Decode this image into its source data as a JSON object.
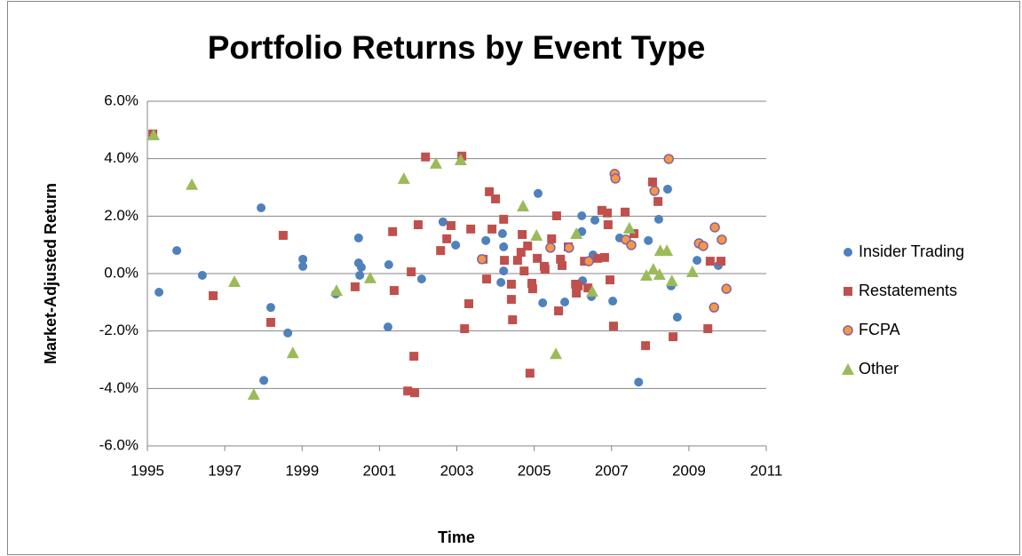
{
  "chart_data": {
    "type": "scatter",
    "title": "Portfolio Returns by Event Type",
    "xlabel": "Time",
    "ylabel": "Market-Adjusted Return",
    "xlim": [
      1995,
      2011
    ],
    "xticks": [
      1995,
      1997,
      1999,
      2001,
      2003,
      2005,
      2007,
      2009,
      2011
    ],
    "ylim": [
      -6,
      6
    ],
    "yticks": [
      {
        "value": -6,
        "label": "-6.0%"
      },
      {
        "value": -4,
        "label": "-4.0%"
      },
      {
        "value": -2,
        "label": "-2.0%"
      },
      {
        "value": 0,
        "label": "0.0%"
      },
      {
        "value": 2,
        "label": "2.0%"
      },
      {
        "value": 4,
        "label": "4.0%"
      },
      {
        "value": 6,
        "label": "6.0%"
      }
    ],
    "grid": true,
    "legend": "right",
    "series": [
      {
        "name": "Insider Trading",
        "color": "#4f81bd",
        "marker": "circle",
        "x": [
          1995.3,
          1995.76,
          1996.42,
          1997.94,
          1998.01,
          1998.19,
          1998.63,
          1999.02,
          1999.02,
          1999.87,
          2000.46,
          2000.46,
          2000.49,
          2000.53,
          2001.22,
          2001.24,
          2002.09,
          2002.64,
          2002.97,
          2003.75,
          2004.14,
          2004.18,
          2004.21,
          2004.21,
          2005.1,
          2005.22,
          2005.79,
          2006.23,
          2006.23,
          2006.25,
          2006.57,
          2006.52,
          2006.48,
          2007.21,
          2007.03,
          2007.7,
          2007.95,
          2008.22,
          2008.45,
          2008.54,
          2008.7,
          2009.21,
          2009.76
        ],
        "values": [
          -0.65,
          0.8,
          -0.06,
          2.29,
          -3.72,
          -1.18,
          -2.07,
          0.5,
          0.25,
          -0.71,
          1.24,
          0.37,
          -0.06,
          0.22,
          -1.86,
          0.31,
          -0.19,
          1.8,
          0.99,
          1.15,
          -0.31,
          1.39,
          0.09,
          0.93,
          2.79,
          -1.02,
          -0.99,
          2.01,
          1.46,
          -0.25,
          1.86,
          0.65,
          -0.8,
          1.24,
          -0.96,
          -3.78,
          1.15,
          1.89,
          2.94,
          -0.43,
          -1.52,
          0.46,
          0.28
        ]
      },
      {
        "name": "Restatements",
        "color": "#c0504d",
        "marker": "square",
        "x": [
          1995.14,
          1996.7,
          1998.19,
          1998.51,
          2000.37,
          2001.34,
          2001.38,
          2001.73,
          2001.82,
          2001.89,
          2001.91,
          2002.0,
          2002.19,
          2002.58,
          2002.74,
          2002.85,
          2003.13,
          2003.2,
          2003.31,
          2003.36,
          2003.68,
          2003.77,
          2003.84,
          2003.91,
          2004.0,
          2004.21,
          2004.23,
          2004.41,
          2004.41,
          2004.44,
          2004.57,
          2004.66,
          2004.69,
          2004.74,
          2004.83,
          2004.89,
          2004.94,
          2004.96,
          2005.08,
          2005.26,
          2005.28,
          2005.45,
          2005.58,
          2005.63,
          2005.68,
          2005.72,
          2005.88,
          2006.07,
          2006.09,
          2006.14,
          2006.3,
          2006.39,
          2006.64,
          2006.75,
          2006.82,
          2006.89,
          2006.91,
          2006.96,
          2007.05,
          2007.35,
          2007.58,
          2007.88,
          2008.06,
          2008.2,
          2008.59,
          2009.49,
          2009.55,
          2009.83
        ],
        "values": [
          4.86,
          -0.77,
          -1.7,
          1.33,
          -0.46,
          1.46,
          -0.59,
          -4.09,
          0.06,
          -2.88,
          -4.15,
          1.7,
          4.06,
          0.8,
          1.21,
          1.67,
          4.09,
          -1.92,
          -1.05,
          1.55,
          0.5,
          -0.19,
          2.85,
          1.55,
          2.6,
          1.89,
          0.46,
          -0.37,
          -0.9,
          -1.61,
          0.46,
          0.74,
          1.36,
          0.09,
          0.96,
          -3.47,
          -0.34,
          -0.53,
          0.53,
          0.25,
          0.15,
          1.21,
          2.01,
          -1.3,
          0.5,
          0.28,
          0.93,
          -0.37,
          -0.68,
          -0.43,
          0.43,
          -0.5,
          0.53,
          2.2,
          0.56,
          2.11,
          1.7,
          -0.22,
          -1.83,
          2.14,
          1.39,
          -2.51,
          3.19,
          2.51,
          -2.2,
          -1.92,
          0.43,
          0.43
        ]
      },
      {
        "name": "FCPA",
        "color": "#f79646",
        "edgecolor": "#8064a2",
        "marker": "circle",
        "x": [
          2003.65,
          2005.42,
          2005.9,
          2006.41,
          2007.08,
          2007.1,
          2007.37,
          2007.51,
          2008.11,
          2008.48,
          2009.26,
          2009.37,
          2009.65,
          2009.67,
          2009.85,
          2009.97
        ],
        "values": [
          0.5,
          0.9,
          0.9,
          0.43,
          3.47,
          3.31,
          1.18,
          0.99,
          2.88,
          3.99,
          1.05,
          0.96,
          -1.18,
          1.61,
          1.18,
          -0.53
        ]
      },
      {
        "name": "Other",
        "color": "#9bbb59",
        "marker": "triangle",
        "x": [
          1995.16,
          1996.15,
          1997.25,
          1997.75,
          1998.76,
          1999.89,
          2000.76,
          2001.63,
          2002.46,
          2003.1,
          2004.71,
          2005.06,
          2005.56,
          2006.09,
          2006.5,
          2007.46,
          2007.9,
          2008.08,
          2008.24,
          2008.26,
          2008.43,
          2008.56,
          2009.09
        ],
        "values": [
          4.83,
          3.1,
          -0.28,
          -4.21,
          -2.76,
          -0.59,
          -0.15,
          3.31,
          3.84,
          3.96,
          2.35,
          1.33,
          -2.79,
          1.39,
          -0.62,
          1.58,
          -0.06,
          0.15,
          -0.03,
          0.8,
          0.8,
          -0.25,
          0.06
        ]
      }
    ]
  }
}
